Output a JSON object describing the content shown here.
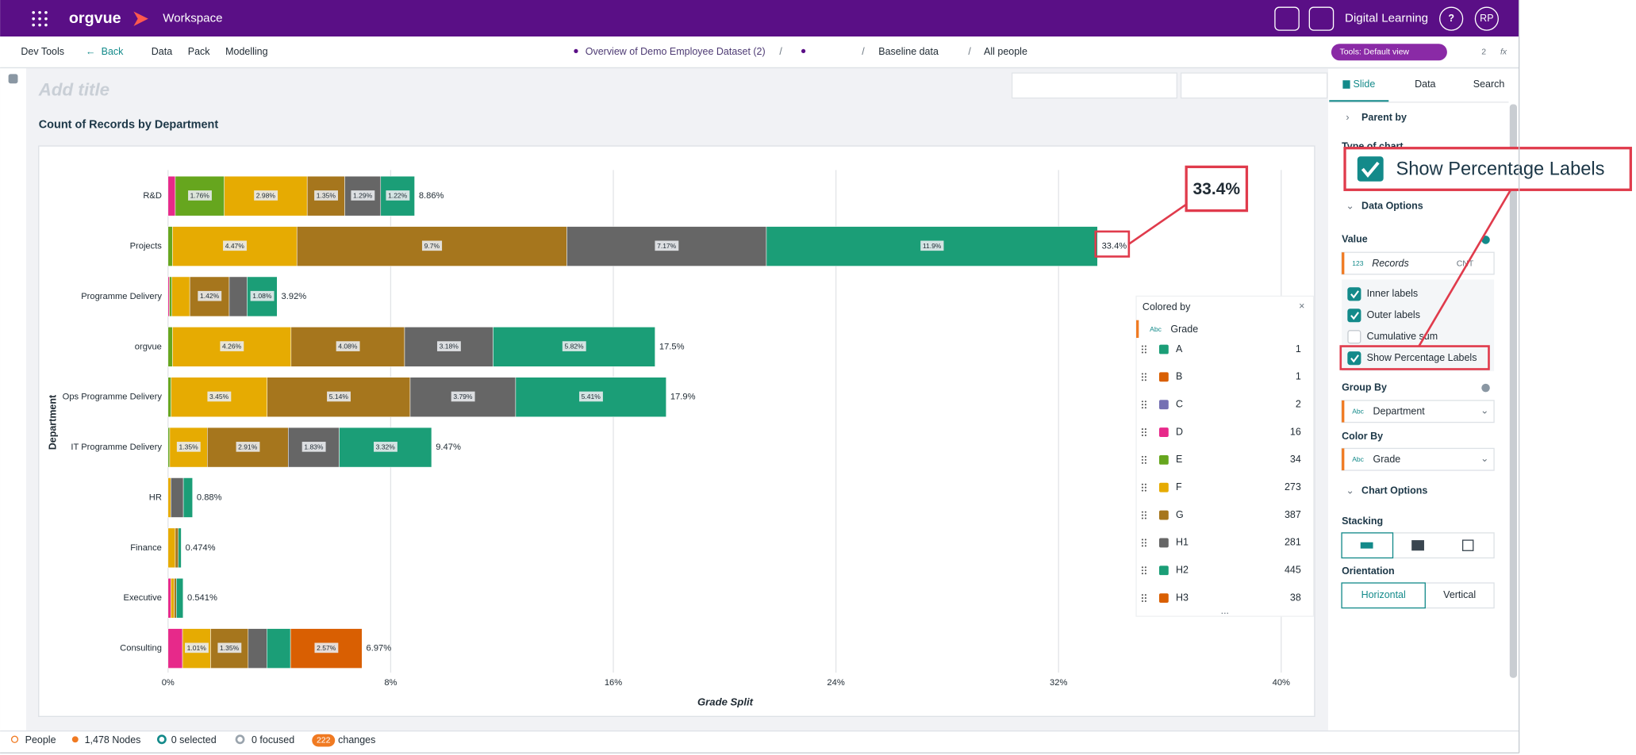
{
  "header": {
    "brand": "orgvue",
    "workspace": "Workspace",
    "org": "Digital Learning",
    "help": "?",
    "user": "RP"
  },
  "nav": {
    "items": [
      "Dev Tools",
      "Back",
      "Data",
      "Pack",
      "Modelling"
    ],
    "dataset": "Overview of Demo Employee Dataset (2)",
    "separator": "/",
    "baseline": "Baseline data",
    "scope": "All people",
    "tools": "Tools: Default view",
    "people_count": "2",
    "fx": "fx"
  },
  "slide": {
    "title_placeholder": "Add title"
  },
  "chart_data": {
    "type": "bar",
    "orientation": "horizontal",
    "stacked": true,
    "title": "Count of Records by Department",
    "x_label": "Grade Split",
    "y_label": "Department",
    "categories": [
      "R&D",
      "Projects",
      "Programme Delivery",
      "orgvue",
      "Ops Programme Delivery",
      "IT Programme Delivery",
      "HR",
      "Finance",
      "Executive",
      "Consulting"
    ],
    "series": [
      {
        "name": "A",
        "color": "#1b9e77",
        "count": 1,
        "values": [
          null,
          null,
          null,
          null,
          null,
          null,
          null,
          null,
          null,
          null
        ],
        "value_labels": [
          null,
          null,
          null,
          null,
          null,
          null,
          null,
          null,
          null,
          null
        ]
      },
      {
        "name": "B",
        "color": "#d95f02",
        "count": 1,
        "values": [
          null,
          null,
          null,
          null,
          null,
          null,
          null,
          null,
          null,
          null
        ],
        "value_labels": [
          null,
          null,
          null,
          null,
          null,
          null,
          null,
          null,
          null,
          null
        ]
      },
      {
        "name": "C",
        "color": "#7570b3",
        "count": 2,
        "values": [
          null,
          null,
          null,
          null,
          null,
          null,
          null,
          null,
          null,
          null
        ],
        "value_labels": [
          null,
          null,
          null,
          null,
          null,
          null,
          null,
          null,
          null,
          null
        ]
      },
      {
        "name": "D",
        "color": "#e7298a",
        "count": 16,
        "values": [
          0.26,
          null,
          0.05,
          null,
          null,
          null,
          null,
          null,
          0.1,
          0.52
        ],
        "value_labels": [
          null,
          null,
          null,
          null,
          null,
          null,
          null,
          null,
          null,
          null
        ]
      },
      {
        "name": "E",
        "color": "#66a61e",
        "count": 34,
        "values": [
          1.76,
          0.16,
          0.09,
          0.16,
          0.11,
          0.06,
          null,
          null,
          null,
          null
        ],
        "value_labels": [
          "1.76%",
          null,
          null,
          null,
          null,
          null,
          null,
          null,
          null,
          null
        ]
      },
      {
        "name": "F",
        "color": "#e6ab02",
        "count": 273,
        "values": [
          2.98,
          4.47,
          0.64,
          4.26,
          3.45,
          1.35,
          0.1,
          0.26,
          0.12,
          1.01
        ],
        "value_labels": [
          "2.98%",
          "4.47%",
          null,
          "4.26%",
          "3.45%",
          "1.35%",
          null,
          null,
          null,
          "1.01%"
        ]
      },
      {
        "name": "G",
        "color": "#a6761d",
        "count": 387,
        "values": [
          1.35,
          9.7,
          1.42,
          4.08,
          5.14,
          2.91,
          null,
          0.11,
          0.08,
          1.35
        ],
        "value_labels": [
          "1.35%",
          "9.7%",
          "1.42%",
          "4.08%",
          "5.14%",
          "2.91%",
          null,
          null,
          null,
          "1.35%"
        ]
      },
      {
        "name": "H1",
        "color": "#666666",
        "count": 281,
        "values": [
          1.29,
          7.17,
          0.64,
          3.18,
          3.79,
          1.83,
          0.45,
          null,
          null,
          0.67
        ],
        "value_labels": [
          "1.29%",
          "7.17%",
          null,
          "3.18%",
          "3.79%",
          "1.83%",
          null,
          null,
          null,
          null
        ]
      },
      {
        "name": "H2",
        "color": "#1b9e77",
        "count": 445,
        "values": [
          1.22,
          11.9,
          1.08,
          5.82,
          5.41,
          3.32,
          0.33,
          0.104,
          0.241,
          0.85
        ],
        "value_labels": [
          "1.22%",
          "11.9%",
          "1.08%",
          "5.82%",
          "5.41%",
          "3.32%",
          null,
          null,
          null,
          null
        ]
      },
      {
        "name": "H3",
        "color": "#d95f02",
        "count": 38,
        "values": [
          null,
          null,
          null,
          null,
          null,
          null,
          null,
          null,
          null,
          2.57
        ],
        "value_labels": [
          null,
          null,
          null,
          null,
          null,
          null,
          null,
          null,
          null,
          "2.57%"
        ]
      }
    ],
    "totals": [
      8.86,
      33.4,
      3.92,
      17.5,
      17.9,
      9.47,
      0.88,
      0.474,
      0.541,
      6.97
    ],
    "total_labels": [
      "8.86%",
      "33.4%",
      "3.92%",
      "17.5%",
      "17.9%",
      "9.47%",
      "0.88%",
      "0.474%",
      "0.541%",
      "6.97%"
    ],
    "xlim": [
      0,
      40
    ],
    "xticks": [
      {
        "value": 0,
        "label": "0%"
      },
      {
        "value": 8,
        "label": "8%"
      },
      {
        "value": 16,
        "label": "16%"
      },
      {
        "value": 24,
        "label": "24%"
      },
      {
        "value": 32,
        "label": "32%"
      },
      {
        "value": 40,
        "label": "40%"
      }
    ],
    "grid": true,
    "callout": "33.4%"
  },
  "legend_panel": {
    "heading": "Colored by",
    "close": "×",
    "badge": "Abc",
    "field": "Grade",
    "more": "..."
  },
  "side_panel": {
    "tabs": [
      "Slide",
      "Data",
      "Search"
    ],
    "parent_by": "Parent by",
    "type_of_chart": "Type of chart",
    "data_options": "Data Options",
    "value_heading": "Value",
    "value_badge": "123",
    "value_field": "Records",
    "aggregate": "CNT",
    "checkboxes": [
      {
        "label": "Inner labels",
        "checked": true
      },
      {
        "label": "Outer labels",
        "checked": true
      },
      {
        "label": "Cumulative sum",
        "checked": false
      },
      {
        "label": "Show Percentage Labels",
        "checked": true
      }
    ],
    "group_by": "Group By",
    "badge": "Abc",
    "group_field": "Department",
    "color_by": "Color By",
    "color_field": "Grade",
    "chart_options": "Chart Options",
    "stacking": "Stacking",
    "orientation": "Orientation",
    "orientation_options": [
      "Horizontal",
      "Vertical"
    ]
  },
  "zoom_callout": {
    "label": "Show Percentage Labels"
  },
  "status_bar": {
    "items": [
      "People",
      "1,478 Nodes",
      "0 selected",
      "0 focused"
    ],
    "changes_count": "222",
    "changes": "changes"
  }
}
